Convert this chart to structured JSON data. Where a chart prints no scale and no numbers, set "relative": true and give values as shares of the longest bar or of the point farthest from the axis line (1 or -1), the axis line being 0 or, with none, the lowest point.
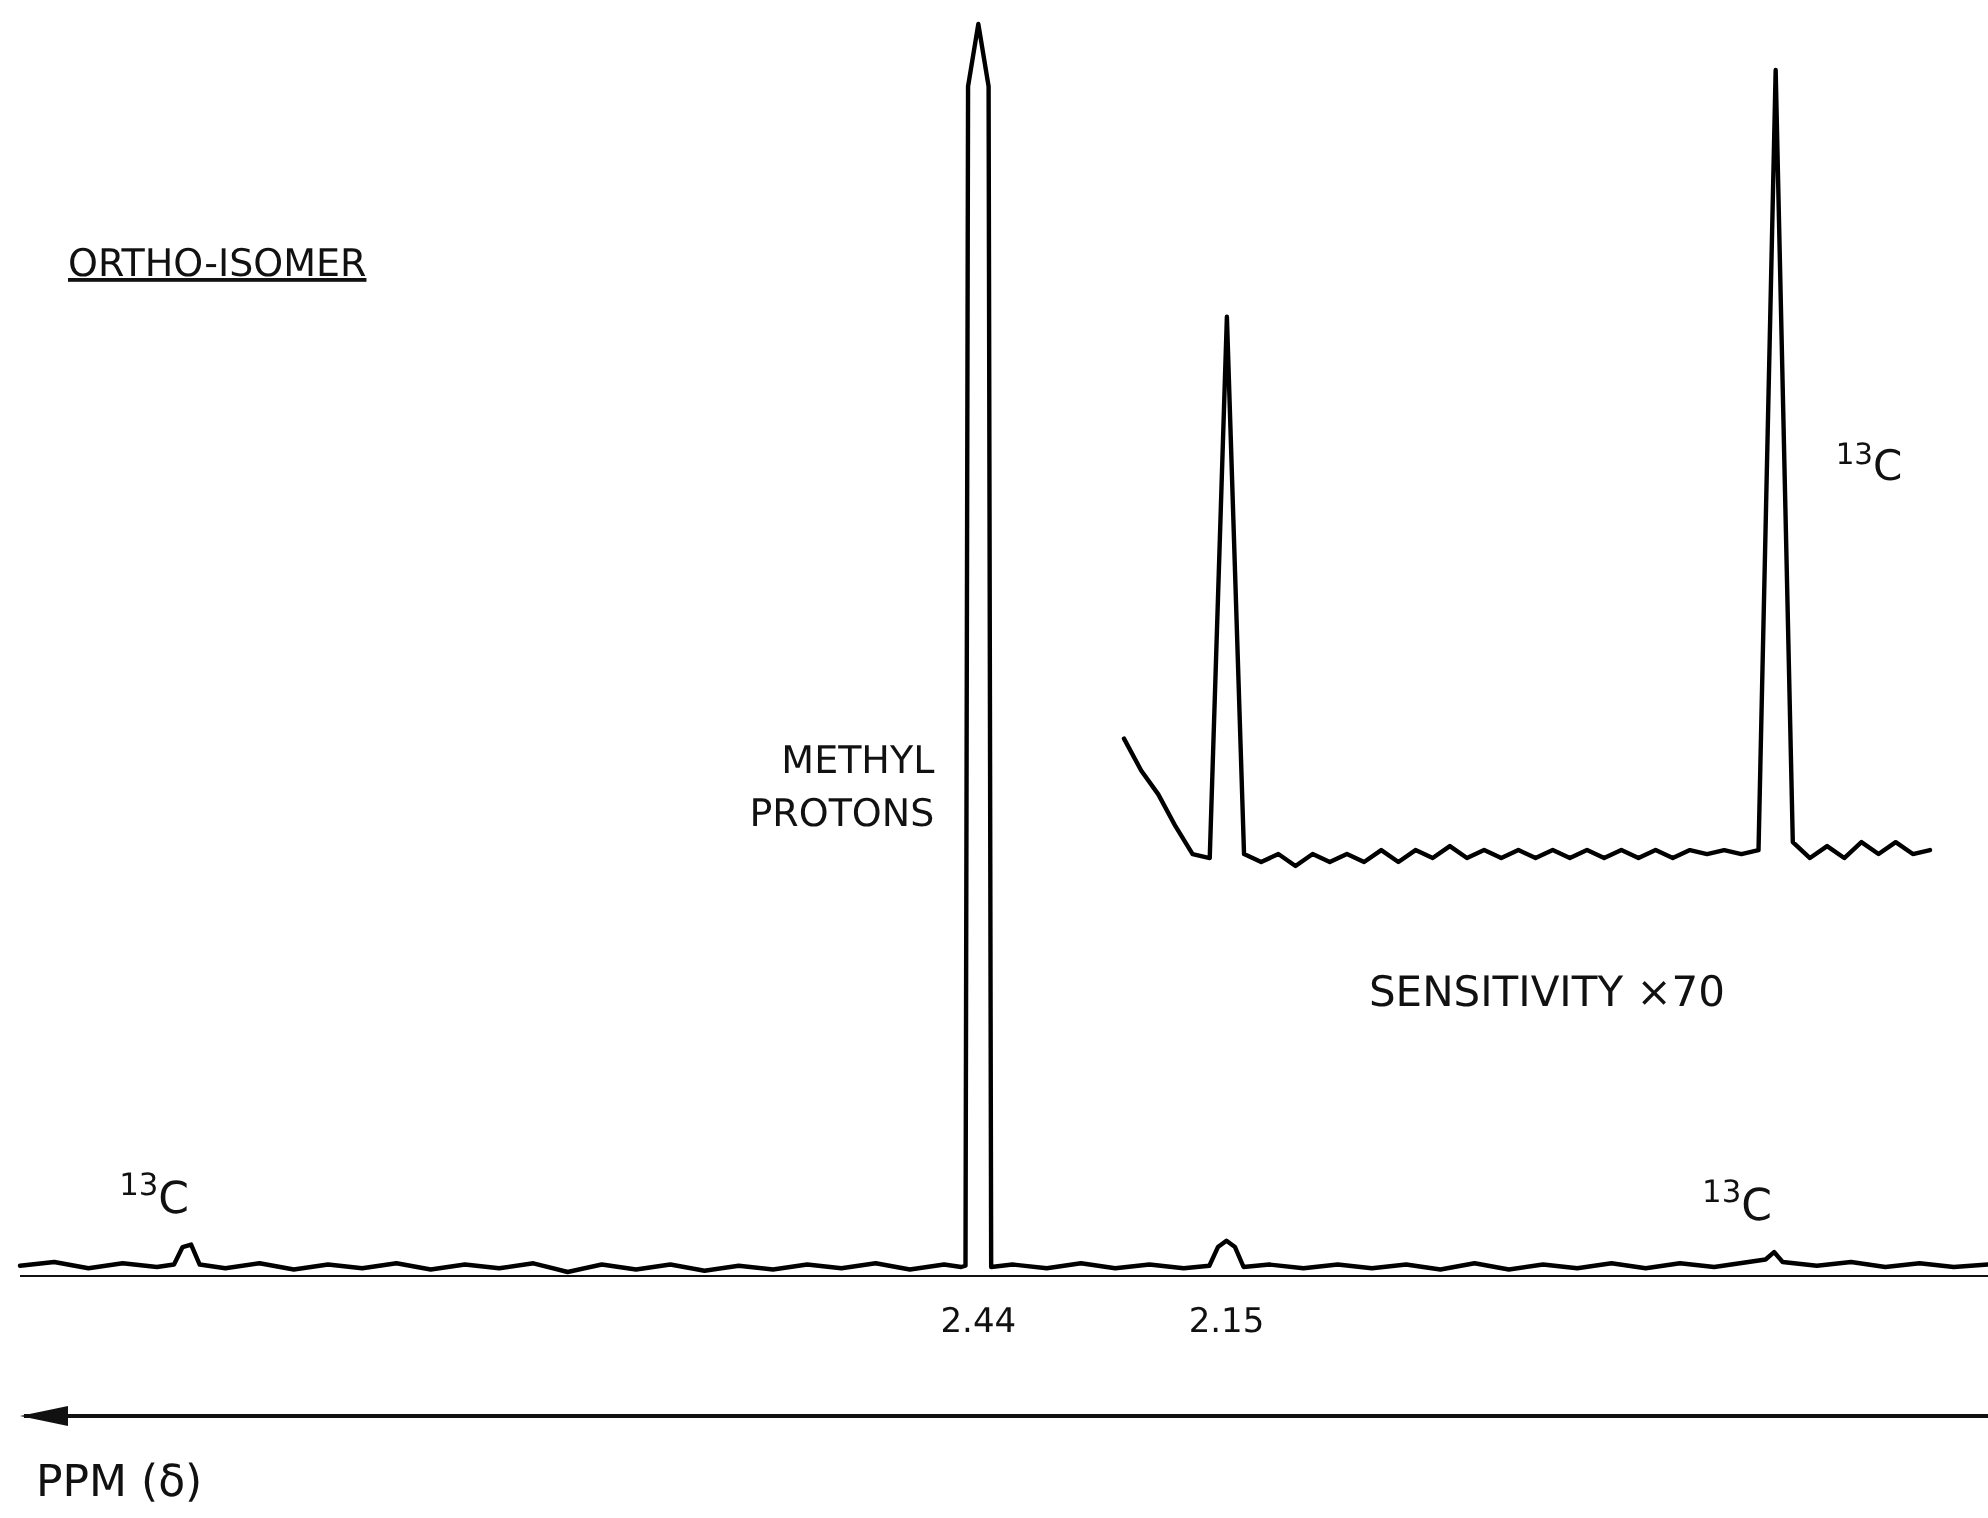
{
  "chart_data": [
    {
      "type": "line",
      "title": "ORTHO-ISOMER",
      "xlabel": "PPM (δ)",
      "relative": true,
      "xlim": [
        3.56,
        1.26
      ],
      "xticks": [
        2.44,
        2.15
      ],
      "series": [
        {
          "color": "#000000",
          "x": [
            3.56,
            3.52,
            3.48,
            3.44,
            3.4,
            3.38,
            3.37,
            3.36,
            3.35,
            3.32,
            3.28,
            3.24,
            3.2,
            3.16,
            3.12,
            3.08,
            3.04,
            3.0,
            2.96,
            2.92,
            2.88,
            2.84,
            2.8,
            2.76,
            2.72,
            2.68,
            2.64,
            2.6,
            2.56,
            2.52,
            2.48,
            2.46,
            2.455,
            2.452,
            2.44,
            2.428,
            2.425,
            2.4,
            2.36,
            2.32,
            2.28,
            2.24,
            2.2,
            2.17,
            2.16,
            2.15,
            2.14,
            2.13,
            2.1,
            2.06,
            2.02,
            1.98,
            1.94,
            1.9,
            1.86,
            1.82,
            1.78,
            1.74,
            1.7,
            1.66,
            1.62,
            1.58,
            1.54,
            1.52,
            1.51,
            1.5,
            1.46,
            1.42,
            1.38,
            1.34,
            1.3,
            1.26
          ],
          "values": [
            0.005,
            0.008,
            0.003,
            0.007,
            0.004,
            0.006,
            0.02,
            0.022,
            0.006,
            0.003,
            0.007,
            0.002,
            0.006,
            0.003,
            0.007,
            0.002,
            0.006,
            0.003,
            0.007,
            0,
            0.006,
            0.002,
            0.006,
            0.001,
            0.005,
            0.002,
            0.006,
            0.003,
            0.007,
            0.002,
            0.006,
            0.004,
            0.005,
            0.95,
            1,
            0.95,
            0.004,
            0.006,
            0.003,
            0.007,
            0.003,
            0.006,
            0.003,
            0.005,
            0.02,
            0.025,
            0.02,
            0.004,
            0.006,
            0.003,
            0.006,
            0.003,
            0.006,
            0.002,
            0.007,
            0.002,
            0.006,
            0.003,
            0.007,
            0.003,
            0.007,
            0.004,
            0.008,
            0.01,
            0.016,
            0.008,
            0.005,
            0.008,
            0.004,
            0.007,
            0.004,
            0.006
          ]
        }
      ],
      "annotations": [
        {
          "text": "$^{13}$C",
          "x": 3.36,
          "y": 0.022
        },
        {
          "text": "METHYL PROTONS",
          "x": 2.44,
          "y": 0.4
        },
        {
          "text": "$^{13}$C",
          "x": 1.51,
          "y": 0.016
        }
      ]
    },
    {
      "type": "line",
      "relative": true,
      "color": "#000000",
      "categories": [
        null,
        null,
        null,
        null,
        null,
        null,
        null,
        null,
        null,
        null,
        null,
        null,
        null,
        null,
        null,
        null,
        null,
        null,
        null,
        null,
        null,
        null,
        null,
        null,
        null,
        null,
        null,
        null,
        null,
        null,
        null,
        null,
        null,
        null,
        null,
        null,
        null,
        null,
        null,
        null,
        null,
        null,
        null,
        null,
        null,
        null,
        null,
        null
      ],
      "values": [
        0.16,
        0.12,
        0.09,
        0.05,
        0.015,
        0.01,
        0.69,
        0.015,
        0.005,
        0.015,
        0,
        0.015,
        0.005,
        0.015,
        0.005,
        0.02,
        0.005,
        0.02,
        0.01,
        0.025,
        0.01,
        0.02,
        0.01,
        0.02,
        0.01,
        0.02,
        0.01,
        0.02,
        0.01,
        0.02,
        0.01,
        0.02,
        0.01,
        0.02,
        0.015,
        0.02,
        0.015,
        0.02,
        1,
        0.03,
        0.01,
        0.025,
        0.01,
        0.03,
        0.015,
        0.03,
        0.015,
        0.02
      ],
      "annotations": [
        "SENSITIVITY ×70",
        "$^{13}$C"
      ]
    }
  ]
}
